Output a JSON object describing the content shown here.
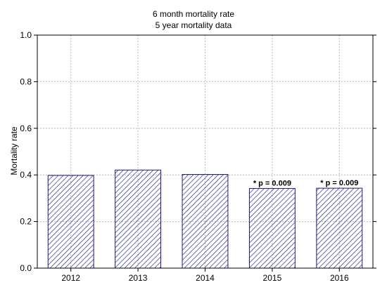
{
  "chart_data": {
    "type": "bar",
    "title": "6 month mortality rate",
    "subtitle": "5 year mortality data",
    "xlabel": "",
    "ylabel": "Mortality rate",
    "categories": [
      "2012",
      "2013",
      "2014",
      "2015",
      "2016"
    ],
    "values": [
      0.398,
      0.421,
      0.402,
      0.342,
      0.343
    ],
    "annotations": [
      "",
      "",
      "",
      "* p = 0.009",
      "* p = 0.009"
    ],
    "ylim": [
      0.0,
      1.0
    ],
    "yticks": [
      "0.0",
      "0.2",
      "0.4",
      "0.6",
      "0.8",
      "1.0"
    ],
    "grid": true,
    "legend": "none",
    "bar_color": "#1a1a80",
    "bar_fill_pattern": "diagonal-hatch",
    "background": "#ffffff"
  }
}
